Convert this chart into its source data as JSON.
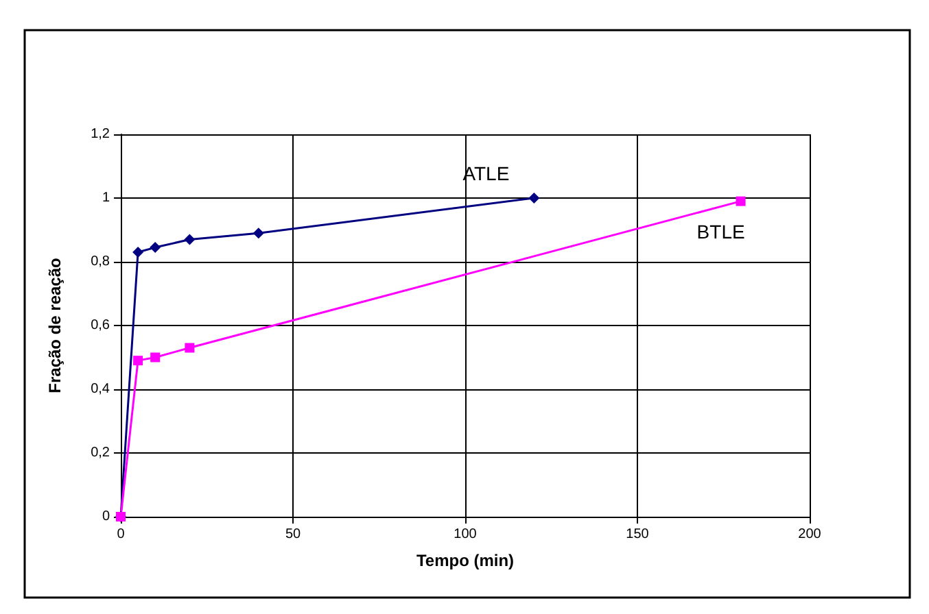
{
  "chart_data": {
    "type": "line",
    "xlabel": "Tempo (min)",
    "ylabel": "Fração de reação",
    "xlim": [
      0,
      200
    ],
    "xticks": [
      0,
      50,
      100,
      150,
      200
    ],
    "ylim": [
      0,
      1.2
    ],
    "yticks": [
      0,
      {
        "value": 0.2,
        "label": "0,2"
      },
      {
        "value": 0.4,
        "label": "0,4"
      },
      {
        "value": 0.6,
        "label": "0,6"
      },
      {
        "value": 0.8,
        "label": "0,8"
      },
      1,
      {
        "value": 1.2,
        "label": "1,2"
      }
    ],
    "grid": true,
    "legend": false,
    "line_style": "solid",
    "series": [
      {
        "name": "ATLE",
        "color": "#000080",
        "marker": "diamond",
        "x": [
          0,
          5,
          10,
          20,
          40,
          120
        ],
        "values": [
          0,
          0.83,
          0.845,
          0.87,
          0.89,
          1.0
        ]
      },
      {
        "name": "BTLE",
        "color": "#ff00ff",
        "marker": "square",
        "x": [
          0,
          5,
          10,
          20,
          180
        ],
        "values": [
          0,
          0.49,
          0.5,
          0.53,
          0.99
        ]
      }
    ]
  }
}
